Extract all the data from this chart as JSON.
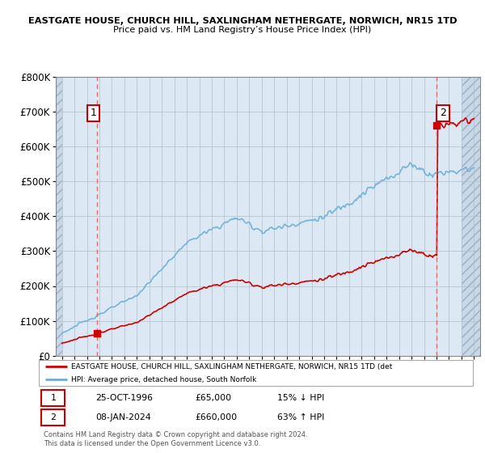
{
  "title1": "EASTGATE HOUSE, CHURCH HILL, SAXLINGHAM NETHERGATE, NORWICH, NR15 1TD",
  "title2": "Price paid vs. HM Land Registry’s House Price Index (HPI)",
  "hpi_label": "HPI: Average price, detached house, South Norfolk",
  "price_label": "EASTGATE HOUSE, CHURCH HILL, SAXLINGHAM NETHERGATE, NORWICH, NR15 1TD (det",
  "annotation1_date": "25-OCT-1996",
  "annotation1_price": "£65,000",
  "annotation1_hpi": "15% ↓ HPI",
  "annotation2_date": "08-JAN-2024",
  "annotation2_price": "£660,000",
  "annotation2_hpi": "63% ↑ HPI",
  "footnote": "Contains HM Land Registry data © Crown copyright and database right 2024.\nThis data is licensed under the Open Government Licence v3.0.",
  "hpi_color": "#6baed6",
  "price_color": "#cc0000",
  "dashed_color": "#e06060",
  "bg_color": "#dce9f5",
  "hatch_color": "#c8d8e8",
  "grid_color": "#b0bfc8",
  "ylim_max": 800000,
  "xmin": 1993.5,
  "xmax": 2027.5,
  "sale1_year": 1996.82,
  "sale1_price": 65000,
  "sale2_year": 2024.03,
  "sale2_price": 660000
}
